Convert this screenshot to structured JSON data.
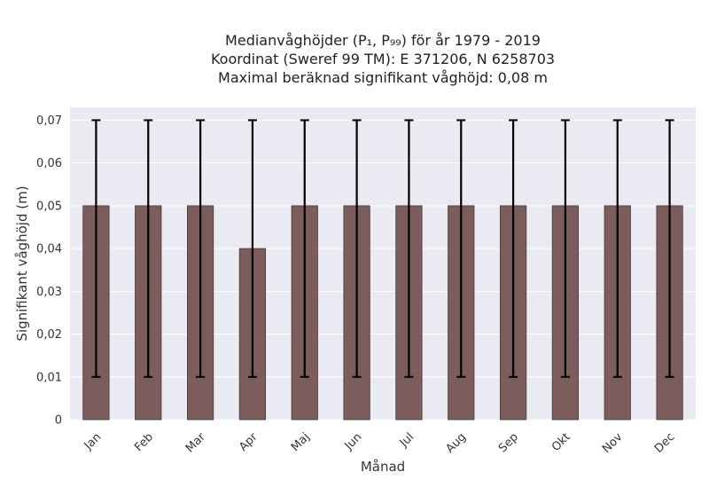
{
  "chart_data": {
    "type": "bar",
    "title_lines": [
      "Medianvåghöjder (P₁, P₉₉) för år 1979 - 2019",
      "Koordinat (Sweref 99 TM): E 371206, N 6258703",
      "Maximal beräknad signifikant våghöjd: 0,08 m"
    ],
    "xlabel": "Månad",
    "ylabel": "Signifikant våghöjd (m)",
    "categories": [
      "Jan",
      "Feb",
      "Mar",
      "Apr",
      "Maj",
      "Jun",
      "Jul",
      "Aug",
      "Sep",
      "Okt",
      "Nov",
      "Dec"
    ],
    "values": [
      0.05,
      0.05,
      0.05,
      0.04,
      0.05,
      0.05,
      0.05,
      0.05,
      0.05,
      0.05,
      0.05,
      0.05
    ],
    "error_low": [
      0.01,
      0.01,
      0.01,
      0.01,
      0.01,
      0.01,
      0.01,
      0.01,
      0.01,
      0.01,
      0.01,
      0.01
    ],
    "error_high": [
      0.07,
      0.07,
      0.07,
      0.07,
      0.07,
      0.07,
      0.07,
      0.07,
      0.07,
      0.07,
      0.07,
      0.07
    ],
    "ylim": [
      0,
      0.073
    ],
    "yticks": [
      0,
      0.01,
      0.02,
      0.03,
      0.04,
      0.05,
      0.06,
      0.07
    ],
    "ytick_labels": [
      "0",
      "0,01",
      "0,02",
      "0,03",
      "0,04",
      "0,05",
      "0,06",
      "0,07"
    ],
    "grid": true,
    "colors": {
      "bar": "#7d5c5c",
      "bar_edge": "#4a3838",
      "error_bar": "#000000",
      "plot_background": "#eaeaf2",
      "grid": "#ffffff"
    }
  }
}
